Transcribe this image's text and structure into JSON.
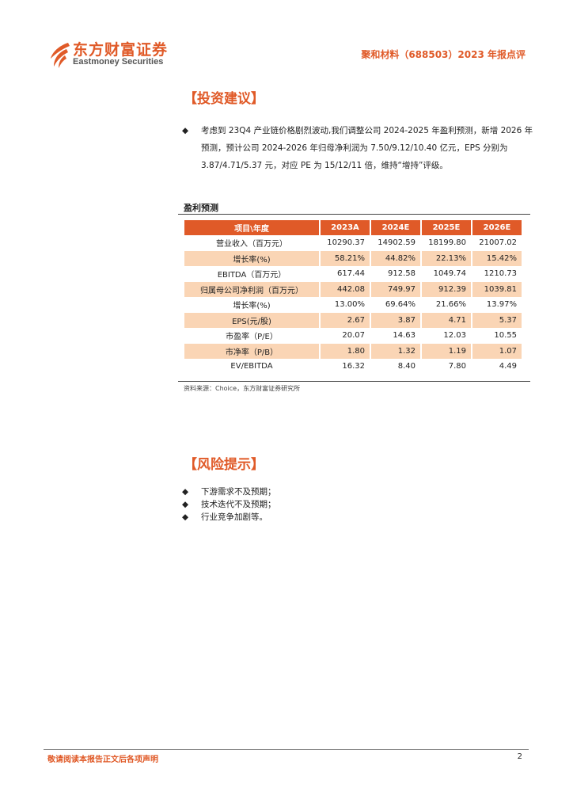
{
  "header": {
    "logo_cn": "东方财富证券",
    "logo_en": "Eastmoney Securities",
    "report_title": "聚和材料（688503）2023 年报点评"
  },
  "invest": {
    "title": "【投资建议】",
    "bullet": "考虑到 23Q4 产业链价格剧烈波动,我们调整公司 2024-2025 年盈利预测，新增 2026 年预测，预计公司 2024-2026 年归母净利润为 7.50/9.12/10.40 亿元，EPS 分别为 3.87/4.71/5.37 元，对应 PE 为 15/12/11 倍，维持“增持”评级。"
  },
  "table": {
    "title": "盈利预测",
    "headers": [
      "项目\\年度",
      "2023A",
      "2024E",
      "2025E",
      "2026E"
    ],
    "rows": [
      [
        "营业收入（百万元）",
        "10290.37",
        "14902.59",
        "18199.80",
        "21007.02"
      ],
      [
        "增长率(%)",
        "58.21%",
        "44.82%",
        "22.13%",
        "15.42%"
      ],
      [
        "EBITDA（百万元）",
        "617.44",
        "912.58",
        "1049.74",
        "1210.73"
      ],
      [
        "归属母公司净利润（百万元）",
        "442.08",
        "749.97",
        "912.39",
        "1039.81"
      ],
      [
        "增长率(%)",
        "13.00%",
        "69.64%",
        "21.66%",
        "13.97%"
      ],
      [
        "EPS(元/股)",
        "2.67",
        "3.87",
        "4.71",
        "5.37"
      ],
      [
        "市盈率（P/E）",
        "20.07",
        "14.63",
        "12.03",
        "10.55"
      ],
      [
        "市净率（P/B）",
        "1.80",
        "1.32",
        "1.19",
        "1.07"
      ],
      [
        "EV/EBITDA",
        "16.32",
        "8.40",
        "7.80",
        "4.49"
      ]
    ],
    "source": "资料来源：Choice，东方财富证券研究所"
  },
  "risk": {
    "title": "【风险提示】",
    "items": [
      "下游需求不及预期；",
      "技术迭代不及预期；",
      "行业竞争加剧等。"
    ]
  },
  "footer": {
    "disclaimer": "敬请阅读本报告正文后各项声明",
    "page": "2"
  },
  "colors": {
    "brand": "#e05a28",
    "row_alt": "#fad5b5"
  },
  "bullet_glyph": "◆"
}
